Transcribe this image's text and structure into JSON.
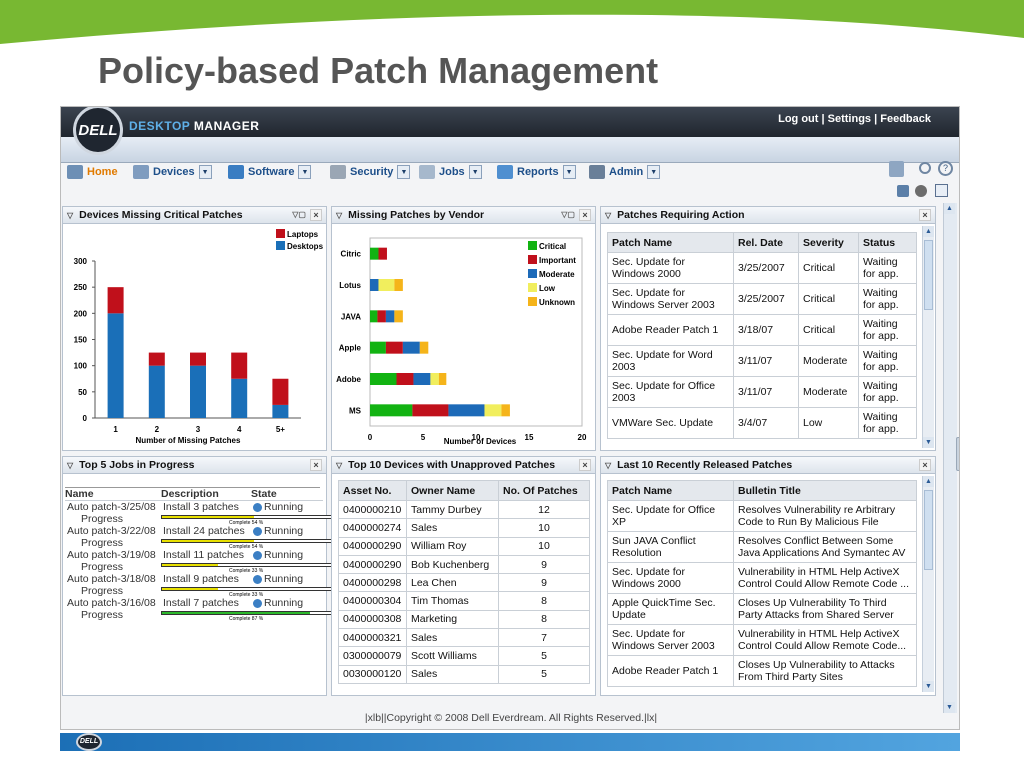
{
  "slide": {
    "title": "Policy-based Patch Management"
  },
  "colors": {
    "accent_green": "#78b832",
    "bar_blue": "#1a6fb8",
    "critical": "#12b312",
    "important": "#c0101b",
    "moderate": "#1d6ab8",
    "low": "#f1ee5d",
    "unknown": "#f5b41a"
  },
  "header": {
    "logo": "DELL",
    "brand_part1": "DESKTOP",
    "brand_part2": "MANAGER",
    "links": [
      "Log out",
      "Settings",
      "Feedback"
    ],
    "separator": "|"
  },
  "nav": {
    "items": [
      {
        "label": "Home",
        "icon": "home-icon"
      },
      {
        "label": "Devices",
        "icon": "devices-icon"
      },
      {
        "label": "Software",
        "icon": "software-icon"
      },
      {
        "label": "Security",
        "icon": "lock-icon"
      },
      {
        "label": "Jobs",
        "icon": "jobs-icon"
      },
      {
        "label": "Reports",
        "icon": "reports-icon"
      },
      {
        "label": "Admin",
        "icon": "admin-icon"
      }
    ]
  },
  "panels": {
    "devices_missing": {
      "title": "Devices Missing Critical Patches",
      "chart_data": {
        "type": "bar",
        "stacked": true,
        "categories": [
          "1",
          "2",
          "3",
          "4",
          "5+"
        ],
        "series": [
          {
            "name": "Desktops",
            "values": [
              200,
              100,
              100,
              75,
              25
            ]
          },
          {
            "name": "Laptops",
            "values": [
              50,
              25,
              25,
              50,
              50
            ]
          }
        ],
        "xlabel": "Number of Missing Patches",
        "ylabel": "",
        "ylim": [
          0,
          300
        ],
        "yticks": [
          0,
          50,
          100,
          150,
          200,
          250,
          300
        ],
        "legend": "top-right",
        "grid": false
      }
    },
    "missing_by_vendor": {
      "title": "Missing Patches by Vendor",
      "chart_data": {
        "type": "bar",
        "orientation": "horizontal",
        "stacked": true,
        "categories": [
          "Citric",
          "Lotus",
          "JAVA",
          "Apple",
          "Adobe",
          "MS"
        ],
        "series": [
          {
            "name": "Critical",
            "values": [
              0.8,
              0,
              0.7,
              1.5,
              2.5,
              4
            ]
          },
          {
            "name": "Important",
            "values": [
              0.8,
              0,
              0.8,
              1.6,
              1.6,
              3.4
            ]
          },
          {
            "name": "Moderate",
            "values": [
              0,
              0.8,
              0.8,
              1.6,
              1.6,
              3.4
            ]
          },
          {
            "name": "Low",
            "values": [
              0,
              1.5,
              0,
              0,
              0.8,
              1.6
            ]
          },
          {
            "name": "Unknown",
            "values": [
              0,
              0.8,
              0.8,
              0.8,
              0.7,
              0.8
            ]
          }
        ],
        "xlabel": "Number of Devices",
        "xlim": [
          0,
          20
        ],
        "xticks": [
          0,
          5,
          10,
          15,
          20
        ],
        "legend": "top-right",
        "grid": false
      }
    },
    "requiring_action": {
      "title": "Patches Requiring Action",
      "columns": [
        "Patch Name",
        "Rel. Date",
        "Severity",
        "Status"
      ],
      "rows": [
        [
          "Sec. Update for Windows 2000",
          "3/25/2007",
          "Critical",
          "Waiting for app."
        ],
        [
          "Sec. Update for Windows Server 2003",
          "3/25/2007",
          "Critical",
          "Waiting for app."
        ],
        [
          "Adobe Reader Patch 1",
          "3/18/07",
          "Critical",
          "Waiting for app."
        ],
        [
          "Sec. Update for Word 2003",
          "3/11/07",
          "Moderate",
          "Waiting for app."
        ],
        [
          "Sec. Update for Office 2003",
          "3/11/07",
          "Moderate",
          "Waiting for app."
        ],
        [
          "VMWare Sec. Update",
          "3/4/07",
          "Low",
          "Waiting for app."
        ]
      ]
    },
    "jobs": {
      "title": "Top 5 Jobs in Progress",
      "columns": [
        "Name",
        "Description",
        "State"
      ],
      "progress_label": "Progress",
      "rows": [
        {
          "name": "Auto patch-3/25/08",
          "desc": "Install 3 patches",
          "state": "Running",
          "complete": "Complete 54 %",
          "pct": 0.54,
          "color": "#e8e000"
        },
        {
          "name": "Auto patch-3/22/08",
          "desc": "Install 24 patches",
          "state": "Running",
          "complete": "Complete 54 %",
          "pct": 0.54,
          "color": "#e8e000"
        },
        {
          "name": "Auto patch-3/19/08",
          "desc": "Install 11 patches",
          "state": "Running",
          "complete": "Complete 33 %",
          "pct": 0.33,
          "color": "#e8e000"
        },
        {
          "name": "Auto patch-3/18/08",
          "desc": "Install 9 patches",
          "state": "Running",
          "complete": "Complete 33 %",
          "pct": 0.33,
          "color": "#e8e000"
        },
        {
          "name": "Auto patch-3/16/08",
          "desc": "Install 7 patches",
          "state": "Running",
          "complete": "Complete 87 %",
          "pct": 0.87,
          "color": "#2cb82c"
        }
      ]
    },
    "unapproved": {
      "title": "Top 10 Devices with Unapproved Patches",
      "columns": [
        "Asset No.",
        "Owner Name",
        "No. Of Patches"
      ],
      "rows": [
        [
          "0400000210",
          "Tammy Durbey",
          "12"
        ],
        [
          "0400000274",
          "Sales",
          "10"
        ],
        [
          "0400000290",
          "William Roy",
          "10"
        ],
        [
          "0400000290",
          "Bob Kuchenberg",
          "9"
        ],
        [
          "0400000298",
          "Lea Chen",
          "9"
        ],
        [
          "0400000304",
          "Tim Thomas",
          "8"
        ],
        [
          "0400000308",
          "Marketing",
          "8"
        ],
        [
          "0400000321",
          "Sales",
          "7"
        ],
        [
          "0300000079",
          "Scott Williams",
          "5"
        ],
        [
          "0030000120",
          "Sales",
          "5"
        ]
      ]
    },
    "recent": {
      "title": "Last 10 Recently Released Patches",
      "columns": [
        "Patch Name",
        "Bulletin Title"
      ],
      "rows": [
        [
          "Sec. Update for Office XP",
          "Resolves Vulnerability re Arbitrary Code to Run By Malicious File"
        ],
        [
          "Sun JAVA Conflict Resolution",
          "Resolves Conflict Between Some Java Applications And Symantec AV"
        ],
        [
          "Sec. Update for Windows 2000",
          "Vulnerability in HTML Help ActiveX Control Could Allow Remote Code ..."
        ],
        [
          "Apple QuickTime Sec. Update",
          "Closes Up Vulnerability To Third Party Attacks from Shared Server"
        ],
        [
          "Sec. Update for Windows Server 2003",
          "Vulnerability in HTML Help ActiveX Control Could Allow Remote Code..."
        ],
        [
          "Adobe Reader Patch 1",
          "Closes Up Vulnerability to Attacks From Third Party Sites"
        ]
      ]
    }
  },
  "footer": {
    "text": "|xlb||Copyright © 2008 Dell Everdream. All Rights Reserved.|lx|"
  },
  "bottom": {
    "logo": "DELL"
  }
}
